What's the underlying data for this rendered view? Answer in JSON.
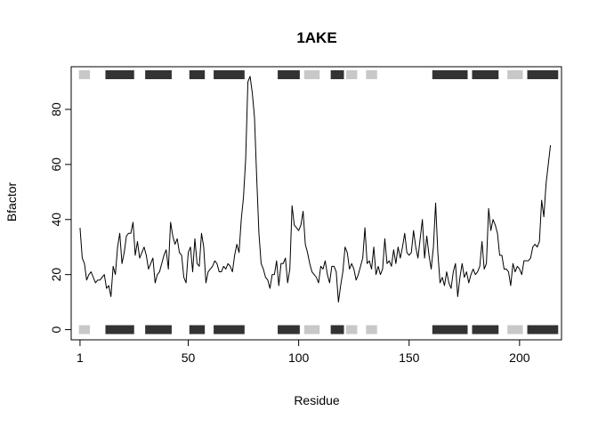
{
  "chart_data": {
    "type": "line",
    "title": "1AKE",
    "xlabel": "Residue",
    "ylabel": "Bfactor",
    "xlim": [
      -3,
      219
    ],
    "ylim": [
      -3.7,
      95.5
    ],
    "x_ticks": [
      1,
      50,
      100,
      150,
      200
    ],
    "y_ticks": [
      0,
      20,
      40,
      60,
      80
    ],
    "grid": false,
    "line_color": "#000000",
    "series": [
      {
        "x": [
          1,
          2,
          3,
          4,
          5,
          6,
          7,
          8,
          9,
          10,
          11,
          12,
          13,
          14,
          15,
          16,
          17,
          18,
          19,
          20,
          21,
          22,
          23,
          24,
          25,
          26,
          27,
          28,
          29,
          30,
          31,
          32,
          33,
          34,
          35,
          36,
          37,
          38,
          39,
          40,
          41,
          42,
          43,
          44,
          45,
          46,
          47,
          48,
          49,
          50,
          51,
          52,
          53,
          54,
          55,
          56,
          57,
          58,
          59,
          60,
          61,
          62,
          63,
          64,
          65,
          66,
          67,
          68,
          69,
          70,
          71,
          72,
          73,
          74,
          75,
          76,
          77,
          78,
          79,
          80,
          81,
          82,
          83,
          84,
          85,
          86,
          87,
          88,
          89,
          90,
          91,
          92,
          93,
          94,
          95,
          96,
          97,
          98,
          99,
          100,
          101,
          102,
          103,
          104,
          105,
          106,
          107,
          108,
          109,
          110,
          111,
          112,
          113,
          114,
          115,
          116,
          117,
          118,
          119,
          120,
          121,
          122,
          123,
          124,
          125,
          126,
          127,
          128,
          129,
          130,
          131,
          132,
          133,
          134,
          135,
          136,
          137,
          138,
          139,
          140,
          141,
          142,
          143,
          144,
          145,
          146,
          147,
          148,
          149,
          150,
          151,
          152,
          153,
          154,
          155,
          156,
          157,
          158,
          159,
          160,
          161,
          162,
          163,
          164,
          165,
          166,
          167,
          168,
          169,
          170,
          171,
          172,
          173,
          174,
          175,
          176,
          177,
          178,
          179,
          180,
          181,
          182,
          183,
          184,
          185,
          186,
          187,
          188,
          189,
          190,
          191,
          192,
          193,
          194,
          195,
          196,
          197,
          198,
          199,
          200,
          201,
          202,
          203,
          204,
          205,
          206,
          207,
          208,
          209,
          210,
          211,
          212,
          213,
          214
        ],
        "y": [
          37,
          26,
          24,
          18,
          20,
          21,
          19,
          17,
          18,
          18,
          19,
          20,
          15,
          16,
          12,
          23,
          20,
          30,
          35,
          24,
          28,
          34,
          35,
          35,
          39,
          27,
          32,
          26,
          28,
          30,
          27,
          22,
          24,
          26,
          17,
          20,
          21,
          24,
          27,
          29,
          22,
          39,
          34,
          31,
          33,
          28,
          27,
          19,
          17,
          28,
          30,
          21,
          33,
          24,
          23,
          35,
          30,
          17,
          21,
          22,
          23,
          25,
          24,
          21,
          21,
          23,
          22,
          24,
          23,
          21,
          27,
          31,
          28,
          40,
          48,
          62,
          90,
          92,
          86,
          77,
          55,
          35,
          24,
          22,
          19,
          18,
          15,
          20,
          20,
          25,
          16,
          24,
          24,
          26,
          17,
          22,
          45,
          38,
          37,
          36,
          38,
          43,
          31,
          28,
          24,
          21,
          20,
          19,
          17,
          23,
          22,
          25,
          20,
          17,
          23,
          23,
          21,
          10,
          16,
          21,
          30,
          28,
          22,
          24,
          22,
          18,
          20,
          23,
          26,
          37,
          24,
          25,
          22,
          30,
          20,
          23,
          20,
          22,
          33,
          24,
          25,
          23,
          29,
          24,
          30,
          26,
          30,
          35,
          28,
          27,
          28,
          36,
          30,
          26,
          33,
          40,
          26,
          34,
          27,
          22,
          30,
          46,
          28,
          17,
          19,
          16,
          21,
          17,
          15,
          21,
          24,
          12,
          19,
          24,
          19,
          21,
          17,
          20,
          22,
          20,
          21,
          23,
          32,
          22,
          24,
          44,
          36,
          40,
          38,
          35,
          27,
          27,
          22,
          22,
          21,
          16,
          24,
          21,
          23,
          22,
          20,
          25,
          25,
          25,
          26,
          30,
          31,
          30,
          32,
          47,
          41,
          53,
          60,
          67
        ]
      }
    ],
    "sse_segments": [
      {
        "start": 1,
        "end": 5,
        "type": "strand",
        "color": "#c8c8c8"
      },
      {
        "start": 13,
        "end": 25,
        "type": "helix",
        "color": "#333333"
      },
      {
        "start": 31,
        "end": 42,
        "type": "helix",
        "color": "#333333"
      },
      {
        "start": 51,
        "end": 57,
        "type": "helix",
        "color": "#333333"
      },
      {
        "start": 62,
        "end": 75,
        "type": "helix",
        "color": "#333333"
      },
      {
        "start": 91,
        "end": 100,
        "type": "helix",
        "color": "#333333"
      },
      {
        "start": 103,
        "end": 109,
        "type": "strand",
        "color": "#c8c8c8"
      },
      {
        "start": 115,
        "end": 120,
        "type": "helix",
        "color": "#333333"
      },
      {
        "start": 122,
        "end": 126,
        "type": "strand",
        "color": "#c8c8c8"
      },
      {
        "start": 131,
        "end": 135,
        "type": "strand",
        "color": "#c8c8c8"
      },
      {
        "start": 161,
        "end": 176,
        "type": "helix",
        "color": "#333333"
      },
      {
        "start": 179,
        "end": 190,
        "type": "helix",
        "color": "#333333"
      },
      {
        "start": 195,
        "end": 201,
        "type": "strand",
        "color": "#c8c8c8"
      },
      {
        "start": 204,
        "end": 217,
        "type": "helix",
        "color": "#333333"
      }
    ]
  }
}
